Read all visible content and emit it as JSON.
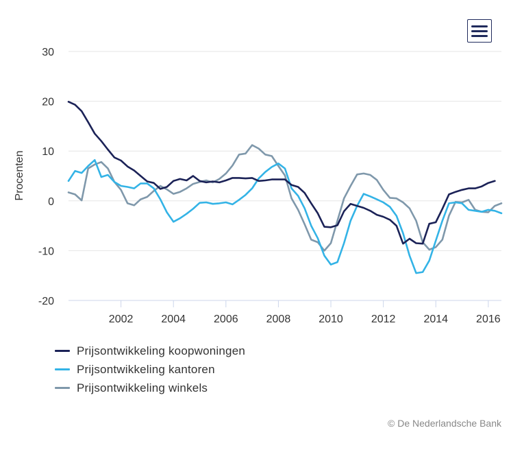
{
  "menu": {
    "icon": "hamburger-menu-icon"
  },
  "credits": "© De Nederlandsche Bank",
  "chart_data": {
    "type": "line",
    "ylabel": "Procenten",
    "ylim": [
      -20,
      30
    ],
    "yticks": [
      "30",
      "20",
      "10",
      "0",
      "-10",
      "-20"
    ],
    "xlim": [
      2000.0,
      2016.5
    ],
    "xticks": [
      "2002",
      "2004",
      "2006",
      "2008",
      "2010",
      "2012",
      "2014",
      "2016"
    ],
    "grid": "horizontal",
    "legend_position": "bottom-left",
    "series": [
      {
        "name": "Prijsontwikkeling koopwoningen",
        "color": "#1b2257",
        "x": [
          2000.0,
          2000.25,
          2000.5,
          2000.75,
          2001.0,
          2001.25,
          2001.5,
          2001.75,
          2002.0,
          2002.25,
          2002.5,
          2002.75,
          2003.0,
          2003.25,
          2003.5,
          2003.75,
          2004.0,
          2004.25,
          2004.5,
          2004.75,
          2005.0,
          2005.25,
          2005.5,
          2005.75,
          2006.0,
          2006.25,
          2006.5,
          2006.75,
          2007.0,
          2007.25,
          2007.5,
          2007.75,
          2008.0,
          2008.25,
          2008.5,
          2008.75,
          2009.0,
          2009.25,
          2009.5,
          2009.75,
          2010.0,
          2010.25,
          2010.5,
          2010.75,
          2011.0,
          2011.25,
          2011.5,
          2011.75,
          2012.0,
          2012.25,
          2012.5,
          2012.75,
          2013.0,
          2013.25,
          2013.5,
          2013.75,
          2014.0,
          2014.25,
          2014.5,
          2014.75,
          2015.0,
          2015.25,
          2015.5,
          2015.75,
          2016.0,
          2016.25
        ],
        "y": [
          19.9,
          19.3,
          18.0,
          15.8,
          13.5,
          12.0,
          10.3,
          8.7,
          8.1,
          6.9,
          6.1,
          5.0,
          3.9,
          3.6,
          2.4,
          2.8,
          4.0,
          4.4,
          4.1,
          5.0,
          4.0,
          3.7,
          3.9,
          3.7,
          4.1,
          4.6,
          4.6,
          4.5,
          4.6,
          4.0,
          4.1,
          4.3,
          4.3,
          4.3,
          3.2,
          2.8,
          1.6,
          -0.5,
          -2.5,
          -5.2,
          -5.3,
          -4.9,
          -2.1,
          -0.6,
          -1.0,
          -1.4,
          -2.0,
          -2.8,
          -3.2,
          -3.8,
          -5.0,
          -8.6,
          -7.6,
          -8.5,
          -8.6,
          -4.6,
          -4.3,
          -1.6,
          1.3,
          1.8,
          2.2,
          2.5,
          2.5,
          2.9,
          3.6,
          4.0
        ]
      },
      {
        "name": "Prijsontwikkeling kantoren",
        "color": "#33b3e6",
        "x": [
          2000.0,
          2000.25,
          2000.5,
          2000.75,
          2001.0,
          2001.25,
          2001.5,
          2001.75,
          2002.0,
          2002.25,
          2002.5,
          2002.75,
          2003.0,
          2003.25,
          2003.5,
          2003.75,
          2004.0,
          2004.25,
          2004.5,
          2004.75,
          2005.0,
          2005.25,
          2005.5,
          2005.75,
          2006.0,
          2006.25,
          2006.5,
          2006.75,
          2007.0,
          2007.25,
          2007.5,
          2007.75,
          2008.0,
          2008.25,
          2008.5,
          2008.75,
          2009.0,
          2009.25,
          2009.5,
          2009.75,
          2010.0,
          2010.25,
          2010.5,
          2010.75,
          2011.0,
          2011.25,
          2011.5,
          2011.75,
          2012.0,
          2012.25,
          2012.5,
          2012.75,
          2013.0,
          2013.25,
          2013.5,
          2013.75,
          2014.0,
          2014.25,
          2014.5,
          2014.75,
          2015.0,
          2015.25,
          2015.5,
          2015.75,
          2016.0,
          2016.25,
          2016.5
        ],
        "y": [
          4.0,
          6.0,
          5.6,
          7.0,
          8.2,
          4.8,
          5.2,
          3.8,
          3.0,
          2.8,
          2.5,
          3.5,
          3.5,
          2.5,
          0.3,
          -2.3,
          -4.2,
          -3.5,
          -2.6,
          -1.6,
          -0.4,
          -0.3,
          -0.6,
          -0.5,
          -0.3,
          -0.7,
          0.2,
          1.2,
          2.5,
          4.5,
          5.8,
          6.8,
          7.5,
          6.5,
          2.5,
          1.0,
          -1.5,
          -5.0,
          -7.5,
          -11.0,
          -12.8,
          -12.3,
          -8.5,
          -4.0,
          -1.0,
          1.4,
          0.9,
          0.3,
          -0.3,
          -1.2,
          -3.0,
          -6.5,
          -11.0,
          -14.5,
          -14.3,
          -12.0,
          -8.0,
          -4.0,
          -0.5,
          -0.3,
          -0.5,
          -1.8,
          -2.0,
          -2.2,
          -1.8,
          -2.0,
          -2.5
        ]
      },
      {
        "name": "Prijsontwikkeling winkels",
        "color": "#7f98ab",
        "x": [
          2000.0,
          2000.25,
          2000.5,
          2000.75,
          2001.0,
          2001.25,
          2001.5,
          2001.75,
          2002.0,
          2002.25,
          2002.5,
          2002.75,
          2003.0,
          2003.25,
          2003.5,
          2003.75,
          2004.0,
          2004.25,
          2004.5,
          2004.75,
          2005.0,
          2005.25,
          2005.5,
          2005.75,
          2006.0,
          2006.25,
          2006.5,
          2006.75,
          2007.0,
          2007.25,
          2007.5,
          2007.75,
          2008.0,
          2008.25,
          2008.5,
          2008.75,
          2009.0,
          2009.25,
          2009.5,
          2009.75,
          2010.0,
          2010.25,
          2010.5,
          2010.75,
          2011.0,
          2011.25,
          2011.5,
          2011.75,
          2012.0,
          2012.25,
          2012.5,
          2012.75,
          2013.0,
          2013.25,
          2013.5,
          2013.75,
          2014.0,
          2014.25,
          2014.5,
          2014.75,
          2015.0,
          2015.25,
          2015.5,
          2015.75,
          2016.0,
          2016.25,
          2016.5
        ],
        "y": [
          1.7,
          1.3,
          0.1,
          6.5,
          7.3,
          7.8,
          6.5,
          3.8,
          2.2,
          -0.5,
          -0.9,
          0.3,
          0.8,
          2.0,
          3.0,
          2.3,
          1.4,
          1.8,
          2.5,
          3.4,
          3.8,
          4.1,
          3.7,
          4.4,
          5.5,
          7.1,
          9.3,
          9.5,
          11.2,
          10.5,
          9.3,
          9.0,
          7.0,
          5.1,
          0.5,
          -1.8,
          -4.7,
          -7.8,
          -8.3,
          -10.0,
          -8.5,
          -4.0,
          0.5,
          3.0,
          5.3,
          5.5,
          5.2,
          4.2,
          2.2,
          0.6,
          0.5,
          -0.3,
          -1.5,
          -4.0,
          -8.3,
          -9.8,
          -9.3,
          -7.8,
          -3.0,
          -0.2,
          -0.3,
          0.2,
          -1.8,
          -2.2,
          -2.3,
          -1.0,
          -0.5
        ]
      }
    ]
  }
}
